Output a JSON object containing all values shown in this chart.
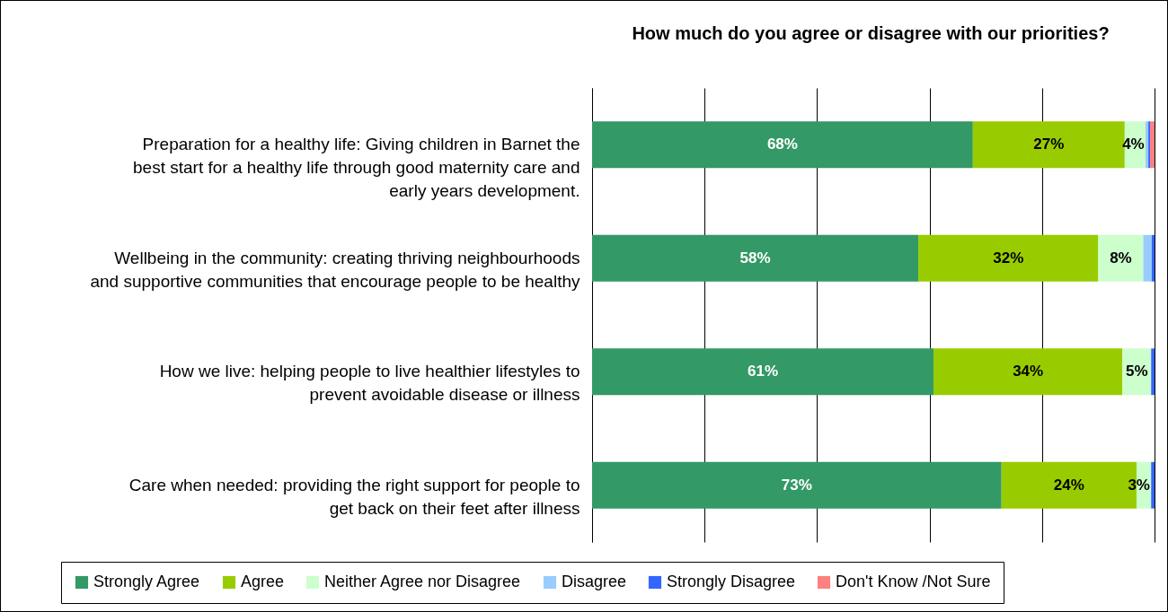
{
  "chart_data": {
    "type": "bar",
    "orientation": "horizontal",
    "stacked": true,
    "title": "How much do you agree or disagree with our priorities?",
    "categories": [
      "Preparation for a healthy life: Giving children in Barnet the best start for a healthy life through good maternity care and early years development.",
      "Wellbeing in the community: creating thriving neighbourhoods and supportive communities that encourage people to be healthy",
      "How we live: helping people to live healthier lifestyles to prevent avoidable disease or illness",
      "Care when needed: providing the right  support for people to get back on their feet after illness"
    ],
    "series": [
      {
        "name": "Strongly Agree",
        "color": "#339966",
        "values": [
          67.7,
          58.0,
          60.7,
          72.8
        ],
        "value_labels": [
          "68%",
          "58%",
          "61%",
          "73%"
        ]
      },
      {
        "name": "Agree",
        "color": "#99cc00",
        "values": [
          27.0,
          32.0,
          33.6,
          24.0
        ],
        "value_labels": [
          "27%",
          "32%",
          "34%",
          "24%"
        ]
      },
      {
        "name": "Neither Agree nor Disagree",
        "color": "#ccffcc",
        "values": [
          3.7,
          8.0,
          5.1,
          2.6
        ],
        "value_labels": [
          "4%",
          "8%",
          "5%",
          "3%"
        ]
      },
      {
        "name": "Disagree",
        "color": "#99ccff",
        "values": [
          0.5,
          1.5,
          0,
          0
        ],
        "value_labels": [
          null,
          null,
          null,
          null
        ]
      },
      {
        "name": "Strongly Disagree",
        "color": "#3366ff",
        "values": [
          0.3,
          0.5,
          0.6,
          0.6
        ],
        "value_labels": [
          null,
          null,
          null,
          null
        ]
      },
      {
        "name": "Don't Know /Not Sure",
        "color": "#ff8080",
        "values": [
          0.8,
          0,
          0,
          0
        ],
        "value_labels": [
          null,
          null,
          null,
          null
        ]
      }
    ],
    "xlim": [
      0,
      100
    ],
    "xticks": [
      {
        "value": 0,
        "label": null
      },
      {
        "value": 20,
        "label": null
      },
      {
        "value": 40,
        "label": null
      },
      {
        "value": 60,
        "label": null
      },
      {
        "value": 80,
        "label": null
      },
      {
        "value": 100,
        "label": null
      }
    ],
    "grid": "x",
    "tick_labels": "y",
    "legend": "bottom"
  }
}
